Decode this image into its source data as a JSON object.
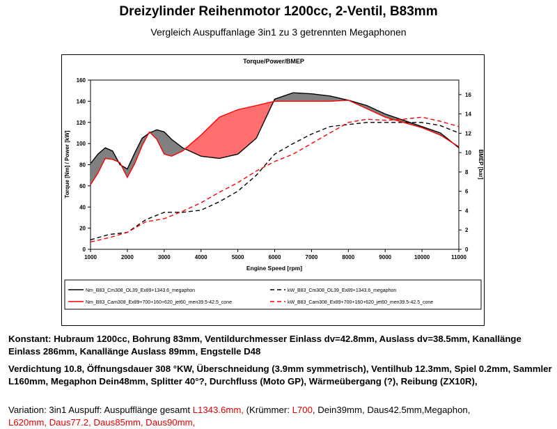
{
  "header": {
    "title": "Dreizylinder Reihenmotor 1200cc, 2-Ventil, B83mm",
    "subtitle": "Vergleich Auspuffanlage 3in1 zu 3 getrennten Megaphonen"
  },
  "colors": {
    "black": "#000000",
    "red": "#ff0000",
    "grey_fill": "#808080",
    "pink_fill": "#ff6f6f",
    "plot_bg": "#ffffff"
  },
  "chart_data": {
    "type": "line",
    "title": "Torque/Power/BMEP",
    "xlabel": "Engine Speed [rpm]",
    "ylabel": "Torque [Nm] / Power [kW]",
    "y2label": "BMEP [bar]",
    "xlim": [
      1000,
      11000
    ],
    "ylim": [
      0,
      160
    ],
    "y2lim": [
      0,
      17.5
    ],
    "xticks": [
      "1000",
      "2000",
      "3000",
      "4000",
      "5000",
      "6000",
      "7000",
      "8000",
      "9000",
      "10000",
      "11000"
    ],
    "yticks": [
      "0",
      "20",
      "40",
      "60",
      "80",
      "100",
      "120",
      "140",
      "160"
    ],
    "y2ticks": [
      "0",
      "2",
      "4",
      "6",
      "8",
      "10",
      "12",
      "14",
      "16"
    ],
    "grid": false,
    "legend_position": "bottom",
    "fill_between_torque": {
      "black_higher": "grey",
      "red_higher": "pink"
    },
    "series": [
      {
        "name": "Nm_B83_Cm308_OL39_Ex89+1343.6_megaphon",
        "color": "#000000",
        "dash": "solid",
        "x": [
          1000,
          1200,
          1400,
          1600,
          1800,
          2000,
          2200,
          2400,
          2600,
          2800,
          3000,
          3200,
          3500,
          4000,
          4500,
          5000,
          5500,
          6000,
          6500,
          7000,
          7500,
          8000,
          8500,
          9000,
          9500,
          10000,
          10500,
          11000
        ],
        "y": [
          81,
          90,
          96,
          93,
          80,
          76,
          91,
          105,
          110,
          113,
          111,
          104,
          96,
          88,
          86,
          90,
          105,
          142,
          148,
          147,
          145,
          141,
          136,
          128,
          122,
          116,
          110,
          96
        ]
      },
      {
        "name": "kW_B83_Cm308_OL39_Ex89+1343.6_megaphon",
        "color": "#000000",
        "dash": "dashed",
        "x": [
          1000,
          1500,
          2000,
          2500,
          3000,
          3500,
          4000,
          4500,
          5000,
          5500,
          6000,
          6500,
          7000,
          7500,
          8000,
          8500,
          9000,
          9500,
          10000,
          10500,
          11000
        ],
        "y": [
          9,
          14,
          16,
          28,
          35,
          35,
          37,
          45,
          55,
          70,
          90,
          100,
          109,
          116,
          118,
          120,
          120,
          120,
          120,
          117,
          110
        ]
      },
      {
        "name": "Nm_B83_Cam308_Ex89+700+160+620_jet60_men39.5-42.5_cone",
        "color": "#ff0000",
        "dash": "solid",
        "x": [
          1000,
          1200,
          1400,
          1600,
          1800,
          2000,
          2200,
          2400,
          2600,
          2800,
          3000,
          3200,
          3500,
          4000,
          4500,
          5000,
          5500,
          6000,
          6500,
          7000,
          7500,
          8000,
          8500,
          9000,
          9500,
          10000,
          10500,
          11000
        ],
        "y": [
          61,
          72,
          86,
          85,
          82,
          68,
          81,
          98,
          111,
          104,
          90,
          88,
          93,
          108,
          125,
          132,
          136,
          140,
          140,
          140,
          140,
          141,
          133,
          125,
          120,
          115,
          108,
          97
        ]
      },
      {
        "name": "kW_B83_Cam308_Ex89+700+160+620_jet60_men39.5-42.5_cone",
        "color": "#ff0000",
        "dash": "dashed",
        "x": [
          1000,
          1500,
          2000,
          2500,
          3000,
          3500,
          4000,
          4500,
          5000,
          5500,
          6000,
          6500,
          7000,
          7500,
          8000,
          8500,
          9000,
          9500,
          10000,
          10500,
          11000
        ],
        "y": [
          7,
          11,
          16,
          26,
          29,
          36,
          44,
          54,
          63,
          74,
          83,
          90,
          100,
          110,
          120,
          123,
          122,
          123,
          125,
          121,
          116
        ]
      }
    ]
  },
  "notes": {
    "line1": "Konstant: Hubraum 1200cc, Bohrung 83mm, Ventildurchmesser Einlass dv=42.8mm, Auslass dv=38.5mm, Kanallänge Einlass 286mm, Kanallänge Auslass 89mm, Engstelle D48",
    "line2": "Verdichtung 10.8, Öffnungsdauer 308 °KW, Überschneidung (3.9mm symmetrisch), Ventilhub 12.3mm, Spiel 0.2mm, Sammler L160mm, Megaphon Dein48mm, Splitter 40°?, Durchfluss (Moto GP), Wärmeübergang (?), Reibung (ZX10R),",
    "line3_a": "Variation: 3in1 Auspuff: Auspufflänge gesamt ",
    "line3_b": "L1343.6mm, ",
    "line3_c": "(Krümmer: ",
    "line3_d": "L700",
    "line3_e": ", Dein39mm, Daus42.5mm,Megaphon, ",
    "line3_f": "L620mm, Daus77.2, Daus85mm, Daus90mm,"
  }
}
